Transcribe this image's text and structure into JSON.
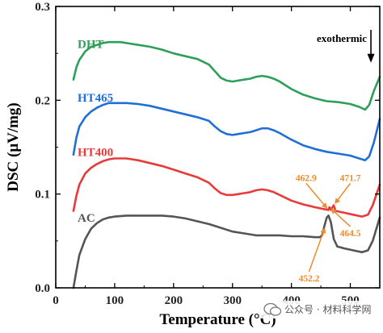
{
  "chart_data": {
    "type": "line",
    "xlabel": "Temperature (°C)",
    "ylabel": "DSC (μV/mg)",
    "xlim": [
      0,
      550
    ],
    "ylim": [
      0,
      0.3
    ],
    "x_ticks": [
      "0",
      "100",
      "200",
      "300",
      "400",
      "500"
    ],
    "y_ticks": [
      "0.0",
      "0.1",
      "0.2",
      "0.3"
    ],
    "grid": false,
    "series": [
      {
        "name": "DHT",
        "color": "#2e9e5b",
        "points": [
          [
            30,
            0.222
          ],
          [
            35,
            0.235
          ],
          [
            40,
            0.243
          ],
          [
            50,
            0.252
          ],
          [
            60,
            0.257
          ],
          [
            70,
            0.259
          ],
          [
            80,
            0.261
          ],
          [
            90,
            0.262
          ],
          [
            100,
            0.262
          ],
          [
            110,
            0.262
          ],
          [
            120,
            0.261
          ],
          [
            140,
            0.259
          ],
          [
            160,
            0.257
          ],
          [
            180,
            0.254
          ],
          [
            200,
            0.25
          ],
          [
            220,
            0.247
          ],
          [
            240,
            0.244
          ],
          [
            260,
            0.238
          ],
          [
            270,
            0.231
          ],
          [
            280,
            0.224
          ],
          [
            290,
            0.221
          ],
          [
            300,
            0.22
          ],
          [
            310,
            0.221
          ],
          [
            320,
            0.222
          ],
          [
            330,
            0.223
          ],
          [
            340,
            0.225
          ],
          [
            350,
            0.226
          ],
          [
            360,
            0.225
          ],
          [
            370,
            0.223
          ],
          [
            380,
            0.22
          ],
          [
            400,
            0.212
          ],
          [
            420,
            0.206
          ],
          [
            440,
            0.202
          ],
          [
            460,
            0.199
          ],
          [
            480,
            0.198
          ],
          [
            500,
            0.196
          ],
          [
            515,
            0.193
          ],
          [
            525,
            0.19
          ],
          [
            532,
            0.195
          ],
          [
            540,
            0.21
          ],
          [
            550,
            0.225
          ]
        ]
      },
      {
        "name": "HT465",
        "color": "#1f6fd6",
        "points": [
          [
            30,
            0.142
          ],
          [
            35,
            0.16
          ],
          [
            40,
            0.172
          ],
          [
            50,
            0.182
          ],
          [
            60,
            0.188
          ],
          [
            70,
            0.192
          ],
          [
            80,
            0.195
          ],
          [
            90,
            0.197
          ],
          [
            100,
            0.197
          ],
          [
            110,
            0.197
          ],
          [
            120,
            0.197
          ],
          [
            140,
            0.196
          ],
          [
            160,
            0.194
          ],
          [
            180,
            0.191
          ],
          [
            200,
            0.188
          ],
          [
            220,
            0.185
          ],
          [
            240,
            0.182
          ],
          [
            260,
            0.178
          ],
          [
            270,
            0.172
          ],
          [
            280,
            0.167
          ],
          [
            290,
            0.164
          ],
          [
            300,
            0.163
          ],
          [
            310,
            0.164
          ],
          [
            320,
            0.165
          ],
          [
            330,
            0.166
          ],
          [
            340,
            0.168
          ],
          [
            350,
            0.17
          ],
          [
            360,
            0.17
          ],
          [
            370,
            0.168
          ],
          [
            380,
            0.165
          ],
          [
            400,
            0.158
          ],
          [
            420,
            0.152
          ],
          [
            440,
            0.148
          ],
          [
            460,
            0.145
          ],
          [
            480,
            0.143
          ],
          [
            500,
            0.141
          ],
          [
            515,
            0.138
          ],
          [
            525,
            0.136
          ],
          [
            532,
            0.14
          ],
          [
            540,
            0.155
          ],
          [
            550,
            0.18
          ]
        ]
      },
      {
        "name": "HT400",
        "color": "#e83a3a",
        "points": [
          [
            30,
            0.082
          ],
          [
            35,
            0.098
          ],
          [
            40,
            0.11
          ],
          [
            50,
            0.122
          ],
          [
            60,
            0.128
          ],
          [
            70,
            0.132
          ],
          [
            80,
            0.135
          ],
          [
            90,
            0.137
          ],
          [
            100,
            0.138
          ],
          [
            110,
            0.138
          ],
          [
            120,
            0.138
          ],
          [
            140,
            0.136
          ],
          [
            160,
            0.133
          ],
          [
            180,
            0.13
          ],
          [
            200,
            0.126
          ],
          [
            220,
            0.122
          ],
          [
            240,
            0.118
          ],
          [
            260,
            0.112
          ],
          [
            270,
            0.106
          ],
          [
            280,
            0.101
          ],
          [
            290,
            0.099
          ],
          [
            300,
            0.099
          ],
          [
            310,
            0.1
          ],
          [
            320,
            0.101
          ],
          [
            330,
            0.102
          ],
          [
            340,
            0.104
          ],
          [
            350,
            0.105
          ],
          [
            360,
            0.104
          ],
          [
            370,
            0.102
          ],
          [
            380,
            0.099
          ],
          [
            400,
            0.093
          ],
          [
            420,
            0.089
          ],
          [
            440,
            0.086
          ],
          [
            455,
            0.084
          ],
          [
            462.9,
            0.083
          ],
          [
            464.5,
            0.086
          ],
          [
            467,
            0.083
          ],
          [
            471.7,
            0.088
          ],
          [
            475,
            0.082
          ],
          [
            490,
            0.08
          ],
          [
            505,
            0.078
          ],
          [
            520,
            0.076
          ],
          [
            530,
            0.078
          ],
          [
            538,
            0.088
          ],
          [
            550,
            0.11
          ]
        ]
      },
      {
        "name": "AC",
        "color": "#555555",
        "points": [
          [
            30,
            0.0
          ],
          [
            35,
            0.018
          ],
          [
            40,
            0.035
          ],
          [
            50,
            0.052
          ],
          [
            60,
            0.063
          ],
          [
            70,
            0.069
          ],
          [
            80,
            0.073
          ],
          [
            90,
            0.075
          ],
          [
            100,
            0.076
          ],
          [
            120,
            0.077
          ],
          [
            140,
            0.077
          ],
          [
            160,
            0.077
          ],
          [
            180,
            0.077
          ],
          [
            200,
            0.076
          ],
          [
            220,
            0.074
          ],
          [
            240,
            0.071
          ],
          [
            260,
            0.068
          ],
          [
            280,
            0.064
          ],
          [
            300,
            0.06
          ],
          [
            320,
            0.058
          ],
          [
            340,
            0.056
          ],
          [
            360,
            0.056
          ],
          [
            380,
            0.056
          ],
          [
            400,
            0.055
          ],
          [
            420,
            0.055
          ],
          [
            440,
            0.054
          ],
          [
            448,
            0.054
          ],
          [
            452.2,
            0.056
          ],
          [
            456,
            0.066
          ],
          [
            460,
            0.075
          ],
          [
            463,
            0.077
          ],
          [
            467,
            0.07
          ],
          [
            472,
            0.052
          ],
          [
            478,
            0.044
          ],
          [
            490,
            0.042
          ],
          [
            505,
            0.04
          ],
          [
            520,
            0.038
          ],
          [
            530,
            0.04
          ],
          [
            538,
            0.05
          ],
          [
            550,
            0.075
          ]
        ]
      }
    ],
    "series_labels": [
      {
        "text": "DHT",
        "x": 48,
        "y": 0.26
      },
      {
        "text": "HT465",
        "x": 48,
        "y": 0.203
      },
      {
        "text": "HT400",
        "x": 48,
        "y": 0.145
      },
      {
        "text": "AC",
        "x": 48,
        "y": 0.075
      }
    ],
    "annotations": [
      {
        "text": "462.9",
        "x": 462.9,
        "y": 0.083,
        "label_x": 425,
        "label_y": 0.114
      },
      {
        "text": "471.7",
        "x": 471.7,
        "y": 0.088,
        "label_x": 500,
        "label_y": 0.114
      },
      {
        "text": "464.5",
        "x": 464.5,
        "y": 0.086,
        "label_x": 500,
        "label_y": 0.055
      },
      {
        "text": "452.2",
        "x": 458,
        "y": 0.066,
        "label_x": 430,
        "label_y": 0.007
      }
    ],
    "annotation_color": "#f08a2c",
    "exothermic": {
      "text": "exothermic",
      "x": 535,
      "y_from": 0.275,
      "y_to": 0.24
    }
  },
  "watermark": {
    "text": "公众号 · 材料科学网"
  }
}
